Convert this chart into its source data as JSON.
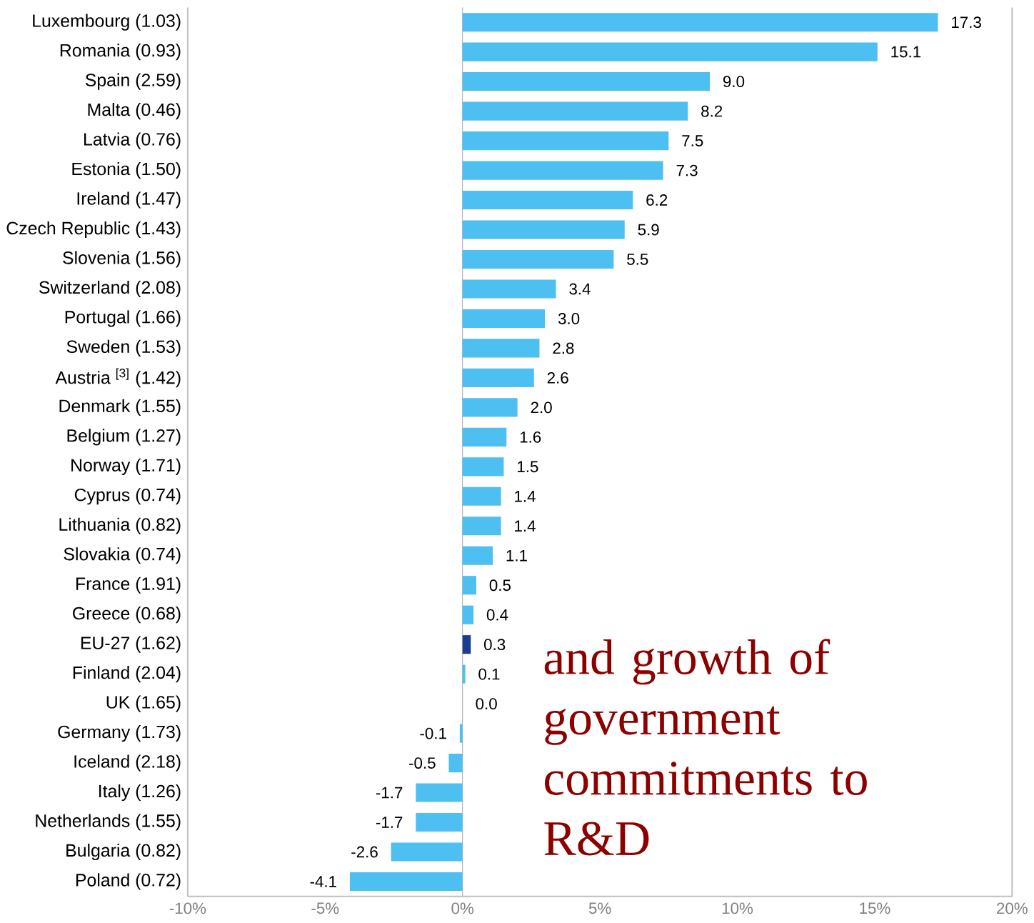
{
  "chart_data": {
    "type": "bar",
    "orientation": "horizontal",
    "categories": [
      "Luxembourg (1.03)",
      "Romania (0.93)",
      "Spain (2.59)",
      "Malta (0.46)",
      "Latvia (0.76)",
      "Estonia (1.50)",
      "Ireland (1.47)",
      "Czech Republic (1.43)",
      "Slovenia (1.56)",
      "Switzerland (2.08)",
      "Portugal (1.66)",
      "Sweden (1.53)",
      "Austria $^{[3]}$ (1.42)",
      "Denmark (1.55)",
      "Belgium (1.27)",
      "Norway (1.71)",
      "Cyprus (0.74)",
      "Lithuania (0.82)",
      "Slovakia (0.74)",
      "France (1.91)",
      "Greece (0.68)",
      "EU-27 (1.62)",
      "Finland (2.04)",
      "UK (1.65)",
      "Germany (1.73)",
      "Iceland (2.18)",
      "Italy (1.26)",
      "Netherlands (1.55)",
      "Bulgaria (0.82)",
      "Poland (0.72)"
    ],
    "values": [
      17.3,
      15.1,
      9.0,
      8.2,
      7.5,
      7.3,
      6.2,
      5.9,
      5.5,
      3.4,
      3.0,
      2.8,
      2.6,
      2.0,
      1.6,
      1.5,
      1.4,
      1.4,
      1.1,
      0.5,
      0.4,
      0.3,
      0.1,
      0.0,
      -0.1,
      -0.5,
      -1.7,
      -1.7,
      -2.6,
      -4.1
    ],
    "value_labels": [
      "17.3",
      "15.1",
      "9.0",
      "8.2",
      "7.5",
      "7.3",
      "6.2",
      "5.9",
      "5.5",
      "3.4",
      "3.0",
      "2.8",
      "2.6",
      "2.0",
      "1.6",
      "1.5",
      "1.4",
      "1.4",
      "1.1",
      "0.5",
      "0.4",
      "0.3",
      "0.1",
      "0.0",
      "-0.1",
      "-0.5",
      "-1.7",
      "-1.7",
      "-2.6",
      "-4.1"
    ],
    "colors": [
      "#4dbff0",
      "#4dbff0",
      "#4dbff0",
      "#4dbff0",
      "#4dbff0",
      "#4dbff0",
      "#4dbff0",
      "#4dbff0",
      "#4dbff0",
      "#4dbff0",
      "#4dbff0",
      "#4dbff0",
      "#4dbff0",
      "#4dbff0",
      "#4dbff0",
      "#4dbff0",
      "#4dbff0",
      "#4dbff0",
      "#4dbff0",
      "#4dbff0",
      "#4dbff0",
      "#1a3d8f",
      "#4dbff0",
      "#4dbff0",
      "#4dbff0",
      "#4dbff0",
      "#4dbff0",
      "#4dbff0",
      "#4dbff0",
      "#4dbff0"
    ],
    "xlim": [
      -10,
      20
    ],
    "xticks": [
      {
        "value": -10,
        "label": "-10%"
      },
      {
        "value": -5,
        "label": "-5%"
      },
      {
        "value": 0,
        "label": "0%"
      },
      {
        "value": 5,
        "label": "5%"
      },
      {
        "value": 10,
        "label": "10%"
      },
      {
        "value": 15,
        "label": "15%"
      },
      {
        "value": 20,
        "label": "20%"
      }
    ],
    "annotations": [
      "and growth of government commitments to R&D"
    ]
  }
}
